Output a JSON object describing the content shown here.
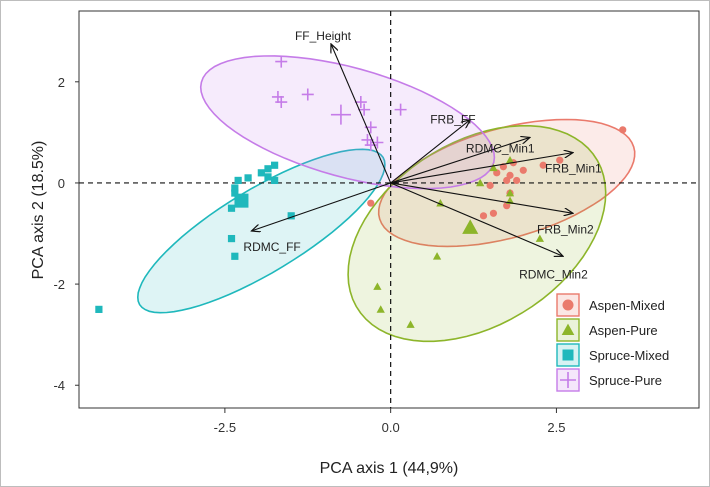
{
  "chart_data": {
    "type": "scatter",
    "xlabel": "PCA axis 1 (44,9%)",
    "ylabel": "PCA axis 2 (18.5%)",
    "xlim": [
      -4.7,
      4.65
    ],
    "ylim": [
      -4.45,
      3.4
    ],
    "x_ticks": [
      -2.5,
      0.0,
      2.5
    ],
    "x_tick_labels": [
      "-2.5",
      "0.0",
      "2.5"
    ],
    "y_ticks": [
      2,
      0,
      -2,
      -4
    ],
    "y_tick_labels": [
      "2",
      "0",
      "-2",
      "-4"
    ],
    "grid": false,
    "reference_lines": [
      "dashed line at x = 0",
      "dashed line at y = 0"
    ],
    "legend_position": "bottom-right",
    "groups": [
      {
        "name": "Aspen-Mixed",
        "color": "#ea7a6c",
        "marker": "circle",
        "points": [
          [
            1.6,
            0.2
          ],
          [
            1.7,
            0.32
          ],
          [
            1.8,
            0.15
          ],
          [
            1.75,
            0.05
          ],
          [
            1.85,
            0.4
          ],
          [
            1.5,
            -0.05
          ],
          [
            1.8,
            -0.2
          ],
          [
            1.75,
            -0.45
          ],
          [
            1.55,
            -0.6
          ],
          [
            1.4,
            -0.65
          ],
          [
            1.9,
            0.05
          ],
          [
            2.0,
            0.25
          ],
          [
            2.3,
            0.35
          ],
          [
            2.55,
            0.45
          ],
          [
            3.5,
            1.05
          ],
          [
            -0.3,
            -0.4
          ]
        ],
        "ellipse": {
          "center": [
            1.75,
            0.0
          ],
          "semi_axis_1": 2.05,
          "semi_axis_2": 1.05,
          "angle_deg": 23
        }
      },
      {
        "name": "Aspen-Pure",
        "color": "#8db52a",
        "marker": "triangle",
        "points": [
          [
            1.55,
            0.3
          ],
          [
            1.35,
            0.0
          ],
          [
            1.8,
            -0.2
          ],
          [
            1.8,
            -0.35
          ],
          [
            1.2,
            -0.9
          ],
          [
            0.75,
            -0.4
          ],
          [
            2.25,
            -1.1
          ],
          [
            0.7,
            -1.45
          ],
          [
            -0.2,
            -2.05
          ],
          [
            -0.15,
            -2.5
          ],
          [
            0.3,
            -2.8
          ],
          [
            1.8,
            0.45
          ]
        ],
        "centroid": [
          1.2,
          -0.88
        ],
        "ellipse": {
          "center": [
            1.3,
            -1.0
          ],
          "semi_axis_1": 2.4,
          "semi_axis_2": 1.6,
          "angle_deg": 52
        }
      },
      {
        "name": "Spruce-Mixed",
        "color": "#1fb8bc",
        "marker": "square",
        "points": [
          [
            -2.3,
            0.05
          ],
          [
            -2.15,
            0.1
          ],
          [
            -1.95,
            0.2
          ],
          [
            -1.85,
            0.12
          ],
          [
            -1.75,
            0.35
          ],
          [
            -1.85,
            0.28
          ],
          [
            -1.75,
            0.05
          ],
          [
            -2.35,
            -0.1
          ],
          [
            -2.35,
            -0.2
          ],
          [
            -2.4,
            -0.5
          ],
          [
            -2.4,
            -1.1
          ],
          [
            -2.35,
            -1.45
          ],
          [
            -1.5,
            -0.65
          ],
          [
            -4.4,
            -2.5
          ]
        ],
        "centroid": [
          -2.25,
          -0.35
        ],
        "ellipse": {
          "center": [
            -1.95,
            -0.95
          ],
          "semi_axis_1": 2.35,
          "semi_axis_2": 0.75,
          "angle_deg": 40
        }
      },
      {
        "name": "Spruce-Pure",
        "color": "#c57ce8",
        "marker": "plus",
        "points": [
          [
            -1.65,
            2.4
          ],
          [
            -1.7,
            1.7
          ],
          [
            -1.65,
            1.6
          ],
          [
            -1.25,
            1.75
          ],
          [
            -0.45,
            1.6
          ],
          [
            -0.4,
            1.45
          ],
          [
            -0.3,
            1.1
          ],
          [
            -0.35,
            0.85
          ],
          [
            -0.3,
            0.75
          ],
          [
            0.15,
            1.45
          ],
          [
            -0.2,
            0.8
          ]
        ],
        "centroid": [
          -0.75,
          1.35
        ],
        "ellipse": {
          "center": [
            -0.65,
            1.2
          ],
          "semi_axis_1": 2.35,
          "semi_axis_2": 1.05,
          "angle_deg": -22
        }
      }
    ],
    "loadings": [
      {
        "name": "FF_Height",
        "x": -0.9,
        "y": 2.75
      },
      {
        "name": "FRB_FF",
        "x": 1.2,
        "y": 1.25
      },
      {
        "name": "RDMC_Min1",
        "x": 2.1,
        "y": 0.9
      },
      {
        "name": "FRB_Min1",
        "x": 2.75,
        "y": 0.6
      },
      {
        "name": "FRB_Min2",
        "x": 2.75,
        "y": -0.6
      },
      {
        "name": "RDMC_Min2",
        "x": 2.6,
        "y": -1.45
      },
      {
        "name": "RDMC_FF",
        "x": -2.1,
        "y": -0.95
      }
    ]
  }
}
